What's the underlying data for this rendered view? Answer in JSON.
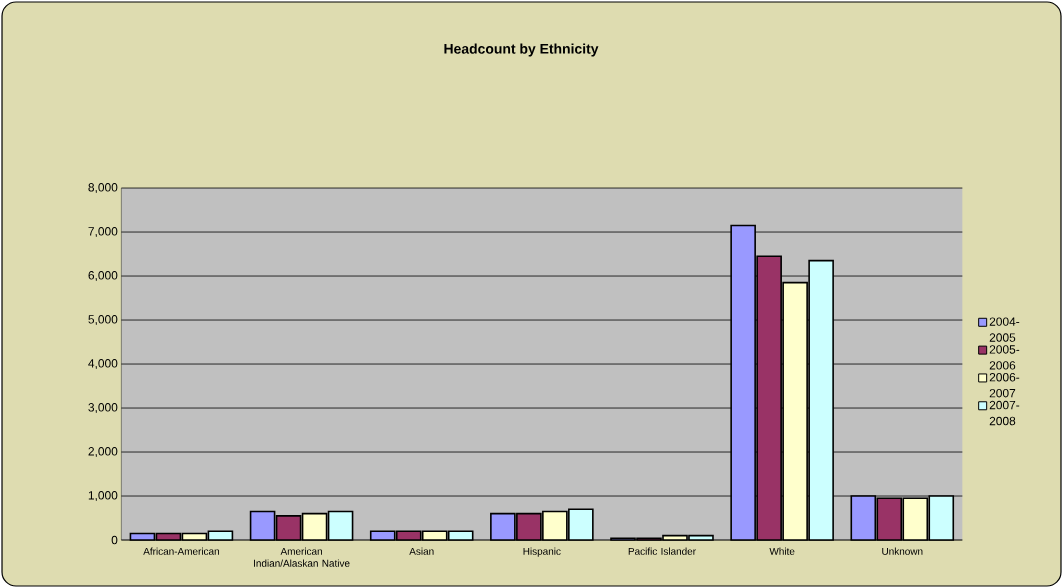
{
  "chart_data": {
    "type": "bar",
    "title": "Headcount by Ethnicity",
    "categories": [
      "African-American",
      "American Indian/Alaskan Native",
      "Asian",
      "Hispanic",
      "Pacific Islander",
      "White",
      "Unknown"
    ],
    "series": [
      {
        "name": "2004-2005",
        "color": "#9999ff",
        "values": [
          150,
          650,
          200,
          600,
          40,
          7150,
          1000
        ]
      },
      {
        "name": "2005-2006",
        "color": "#993366",
        "values": [
          150,
          550,
          200,
          600,
          40,
          6450,
          950
        ]
      },
      {
        "name": "2006-2007",
        "color": "#ffffcc",
        "values": [
          150,
          600,
          200,
          650,
          100,
          5850,
          950
        ]
      },
      {
        "name": "2007-2008",
        "color": "#ccffff",
        "values": [
          200,
          650,
          200,
          700,
          100,
          6350,
          1000
        ]
      }
    ],
    "ylim": [
      0,
      8000
    ],
    "yticks": [
      {
        "value": 0,
        "label": "0"
      },
      {
        "value": 1000,
        "label": "1,000"
      },
      {
        "value": 2000,
        "label": "2,000"
      },
      {
        "value": 3000,
        "label": "3,000"
      },
      {
        "value": 4000,
        "label": "4,000"
      },
      {
        "value": 5000,
        "label": "5,000"
      },
      {
        "value": 6000,
        "label": "6,000"
      },
      {
        "value": 7000,
        "label": "7,000"
      },
      {
        "value": 8000,
        "label": "8,000"
      }
    ],
    "grid": "y",
    "legend": "right"
  }
}
